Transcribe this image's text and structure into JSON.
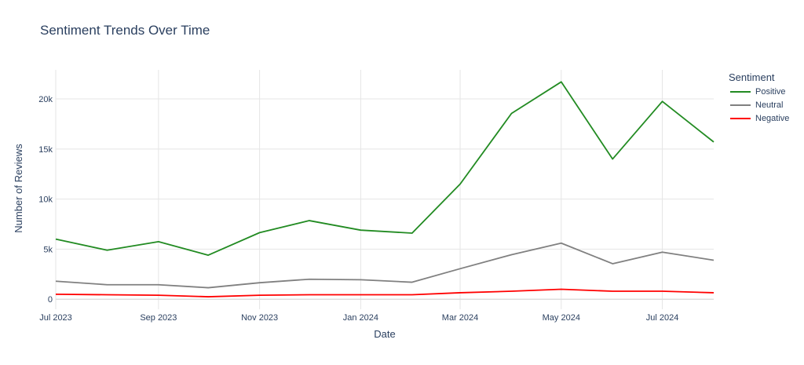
{
  "chart_data": {
    "type": "line",
    "title": "Sentiment Trends Over Time",
    "xlabel": "Date",
    "ylabel": "Number of Reviews",
    "x": [
      "2023-07-01",
      "2023-08-01",
      "2023-09-01",
      "2023-10-01",
      "2023-11-01",
      "2023-12-01",
      "2024-01-01",
      "2024-02-01",
      "2024-03-01",
      "2024-04-01",
      "2024-05-01",
      "2024-06-01",
      "2024-07-01",
      "2024-08-01"
    ],
    "x_ticks": [
      {
        "date": "2023-07-01",
        "label": "Jul 2023"
      },
      {
        "date": "2023-09-01",
        "label": "Sep 2023"
      },
      {
        "date": "2023-11-01",
        "label": "Nov 2023"
      },
      {
        "date": "2024-01-01",
        "label": "Jan 2024"
      },
      {
        "date": "2024-03-01",
        "label": "Mar 2024"
      },
      {
        "date": "2024-05-01",
        "label": "May 2024"
      },
      {
        "date": "2024-07-01",
        "label": "Jul 2024"
      }
    ],
    "y_ticks": [
      {
        "value": 0,
        "label": "0"
      },
      {
        "value": 5000,
        "label": "5k"
      },
      {
        "value": 10000,
        "label": "10k"
      },
      {
        "value": 15000,
        "label": "15k"
      },
      {
        "value": 20000,
        "label": "20k"
      }
    ],
    "ylim": [
      -1000,
      22900
    ],
    "grid": true,
    "legend": {
      "title": "Sentiment",
      "position": "top-right"
    },
    "series": [
      {
        "name": "Positive",
        "color": "#228B22",
        "values": [
          6000,
          4900,
          5750,
          4400,
          6650,
          7850,
          6900,
          6600,
          11500,
          18550,
          21700,
          14000,
          19750,
          15700
        ]
      },
      {
        "name": "Neutral",
        "color": "#808080",
        "values": [
          1800,
          1450,
          1450,
          1150,
          1650,
          2000,
          1950,
          1700,
          3050,
          4450,
          5600,
          3550,
          4700,
          3900
        ]
      },
      {
        "name": "Negative",
        "color": "#FF0000",
        "values": [
          500,
          450,
          400,
          250,
          400,
          450,
          450,
          450,
          650,
          800,
          1000,
          800,
          800,
          650
        ]
      }
    ]
  }
}
